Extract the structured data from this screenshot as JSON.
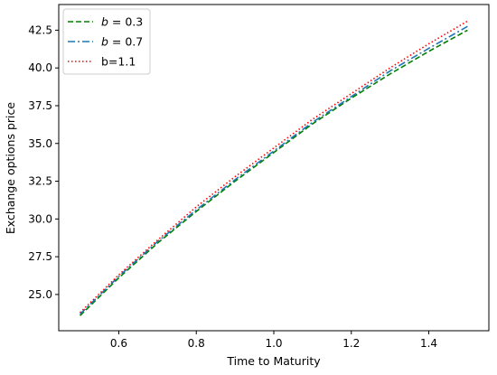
{
  "chart_data": {
    "type": "line",
    "xlabel": "Time to Maturity",
    "ylabel": "Exchange options price",
    "xlim": [
      0.445,
      1.555
    ],
    "ylim": [
      22.6,
      44.2
    ],
    "xticks": [
      0.6,
      0.8,
      1.0,
      1.2,
      1.4
    ],
    "xtick_labels": [
      "0.6",
      "0.8",
      "1.0",
      "1.2",
      "1.4"
    ],
    "yticks": [
      25.0,
      27.5,
      30.0,
      32.5,
      35.0,
      37.5,
      40.0,
      42.5
    ],
    "ytick_labels": [
      "25.0",
      "27.5",
      "30.0",
      "32.5",
      "35.0",
      "37.5",
      "40.0",
      "42.5"
    ],
    "grid": false,
    "legend_position": "top-left",
    "x": [
      0.5,
      0.6,
      0.7,
      0.8,
      0.9,
      1.0,
      1.1,
      1.2,
      1.3,
      1.4,
      1.5
    ],
    "series": [
      {
        "name": "b = 0.3",
        "name_base": "b",
        "name_rest": " = 0.3",
        "color": "#008000",
        "style": "dashed",
        "values": [
          23.6,
          26.1,
          28.4,
          30.5,
          32.5,
          34.4,
          36.3,
          38.0,
          39.6,
          41.1,
          42.5
        ]
      },
      {
        "name": "b = 0.7",
        "name_base": "b",
        "name_rest": " = 0.7",
        "color": "#1f77b4",
        "style": "dashdot",
        "values": [
          23.7,
          26.2,
          28.5,
          30.6,
          32.6,
          34.5,
          36.4,
          38.1,
          39.8,
          41.3,
          42.75
        ]
      },
      {
        "name": "b=1.1",
        "name_base": "",
        "name_rest": "b=1.1",
        "color": "#ff0000",
        "style": "dotted",
        "values": [
          23.8,
          26.3,
          28.6,
          30.8,
          32.8,
          34.7,
          36.6,
          38.3,
          40.0,
          41.6,
          43.1
        ]
      }
    ]
  }
}
